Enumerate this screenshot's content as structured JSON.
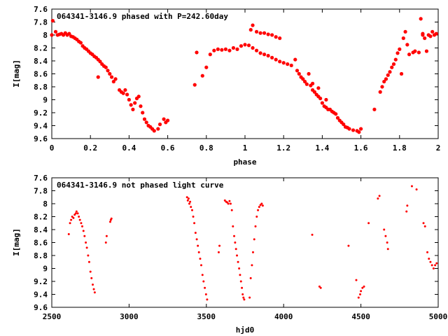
{
  "chart_data": [
    {
      "type": "scatter",
      "title": "064341-3146.9 phased with P=242.60day",
      "xlabel": "phase",
      "ylabel": "I[mag]",
      "xlim": [
        0,
        2
      ],
      "ylim": [
        7.6,
        9.6
      ],
      "y_inverted": true,
      "x_ticks": [
        "0",
        "0.2",
        "0.4",
        "0.6",
        "0.8",
        "1",
        "1.2",
        "1.4",
        "1.6",
        "1.8",
        "2"
      ],
      "y_ticks": [
        "7.6",
        "7.8",
        "8",
        "8.2",
        "8.4",
        "8.6",
        "8.8",
        "9",
        "9.2",
        "9.4",
        "9.6"
      ],
      "marker": "cross",
      "color": "#ff0000",
      "grid": false,
      "points": [
        [
          0.0,
          8.0
        ],
        [
          0.005,
          7.78
        ],
        [
          0.02,
          7.95
        ],
        [
          0.03,
          8.0
        ],
        [
          0.04,
          7.99
        ],
        [
          0.05,
          7.98
        ],
        [
          0.06,
          8.0
        ],
        [
          0.07,
          7.97
        ],
        [
          0.08,
          8.0
        ],
        [
          0.09,
          7.98
        ],
        [
          0.1,
          8.02
        ],
        [
          0.11,
          8.03
        ],
        [
          0.12,
          8.05
        ],
        [
          0.13,
          8.07
        ],
        [
          0.14,
          8.1
        ],
        [
          0.15,
          8.12
        ],
        [
          0.16,
          8.17
        ],
        [
          0.17,
          8.2
        ],
        [
          0.18,
          8.22
        ],
        [
          0.19,
          8.25
        ],
        [
          0.2,
          8.28
        ],
        [
          0.21,
          8.3
        ],
        [
          0.22,
          8.33
        ],
        [
          0.23,
          8.35
        ],
        [
          0.24,
          8.38
        ],
        [
          0.25,
          8.41
        ],
        [
          0.26,
          8.45
        ],
        [
          0.27,
          8.48
        ],
        [
          0.28,
          8.5
        ],
        [
          0.29,
          8.55
        ],
        [
          0.3,
          8.6
        ],
        [
          0.31,
          8.65
        ],
        [
          0.32,
          8.72
        ],
        [
          0.33,
          8.68
        ],
        [
          0.24,
          8.65
        ],
        [
          0.35,
          8.85
        ],
        [
          0.36,
          8.88
        ],
        [
          0.37,
          8.9
        ],
        [
          0.38,
          8.85
        ],
        [
          0.39,
          8.92
        ],
        [
          0.4,
          9.0
        ],
        [
          0.41,
          9.08
        ],
        [
          0.42,
          9.15
        ],
        [
          0.43,
          9.05
        ],
        [
          0.44,
          8.98
        ],
        [
          0.45,
          8.95
        ],
        [
          0.46,
          9.1
        ],
        [
          0.47,
          9.2
        ],
        [
          0.48,
          9.3
        ],
        [
          0.49,
          9.35
        ],
        [
          0.5,
          9.4
        ],
        [
          0.51,
          9.42
        ],
        [
          0.52,
          9.45
        ],
        [
          0.53,
          9.48
        ],
        [
          0.55,
          9.45
        ],
        [
          0.56,
          9.38
        ],
        [
          0.58,
          9.3
        ],
        [
          0.59,
          9.35
        ],
        [
          0.6,
          9.32
        ],
        [
          0.74,
          8.77
        ],
        [
          0.75,
          8.27
        ],
        [
          0.78,
          8.63
        ],
        [
          0.8,
          8.5
        ],
        [
          0.82,
          8.3
        ],
        [
          0.84,
          8.24
        ],
        [
          0.86,
          8.22
        ],
        [
          0.88,
          8.23
        ],
        [
          0.9,
          8.22
        ],
        [
          0.92,
          8.24
        ],
        [
          0.94,
          8.2
        ],
        [
          0.96,
          8.22
        ],
        [
          0.98,
          8.17
        ],
        [
          1.0,
          8.15
        ],
        [
          1.02,
          8.16
        ],
        [
          1.04,
          8.2
        ],
        [
          1.06,
          8.24
        ],
        [
          1.08,
          8.28
        ],
        [
          1.1,
          8.3
        ],
        [
          1.12,
          8.32
        ],
        [
          1.14,
          8.35
        ],
        [
          1.16,
          8.38
        ],
        [
          1.18,
          8.41
        ],
        [
          1.2,
          8.43
        ],
        [
          1.22,
          8.45
        ],
        [
          1.24,
          8.47
        ],
        [
          1.03,
          7.92
        ],
        [
          1.04,
          7.85
        ],
        [
          1.06,
          7.95
        ],
        [
          1.08,
          7.97
        ],
        [
          1.1,
          7.97
        ],
        [
          1.12,
          7.99
        ],
        [
          1.14,
          8.0
        ],
        [
          1.16,
          8.03
        ],
        [
          1.18,
          8.05
        ],
        [
          1.26,
          8.38
        ],
        [
          1.27,
          8.55
        ],
        [
          1.28,
          8.6
        ],
        [
          1.29,
          8.65
        ],
        [
          1.3,
          8.68
        ],
        [
          1.31,
          8.72
        ],
        [
          1.32,
          8.76
        ],
        [
          1.33,
          8.6
        ],
        [
          1.34,
          8.78
        ],
        [
          1.35,
          8.85
        ],
        [
          1.36,
          8.88
        ],
        [
          1.37,
          8.92
        ],
        [
          1.38,
          8.95
        ],
        [
          1.39,
          8.98
        ],
        [
          1.4,
          9.05
        ],
        [
          1.41,
          9.1
        ],
        [
          1.42,
          9.12
        ],
        [
          1.43,
          9.15
        ],
        [
          1.44,
          9.15
        ],
        [
          1.45,
          9.18
        ],
        [
          1.46,
          9.2
        ],
        [
          1.47,
          9.22
        ],
        [
          1.48,
          9.28
        ],
        [
          1.49,
          9.32
        ],
        [
          1.5,
          9.35
        ],
        [
          1.51,
          9.38
        ],
        [
          1.52,
          9.42
        ],
        [
          1.53,
          9.43
        ],
        [
          1.54,
          9.45
        ],
        [
          1.56,
          9.47
        ],
        [
          1.58,
          9.48
        ],
        [
          1.59,
          9.5
        ],
        [
          1.6,
          9.45
        ],
        [
          1.35,
          8.75
        ],
        [
          1.38,
          8.82
        ],
        [
          1.42,
          9.0
        ],
        [
          1.67,
          9.15
        ],
        [
          1.7,
          8.88
        ],
        [
          1.71,
          8.8
        ],
        [
          1.72,
          8.72
        ],
        [
          1.73,
          8.68
        ],
        [
          1.74,
          8.62
        ],
        [
          1.75,
          8.57
        ],
        [
          1.76,
          8.5
        ],
        [
          1.77,
          8.45
        ],
        [
          1.78,
          8.38
        ],
        [
          1.79,
          8.28
        ],
        [
          1.8,
          8.22
        ],
        [
          1.82,
          8.05
        ],
        [
          1.83,
          7.95
        ],
        [
          1.84,
          8.15
        ],
        [
          1.85,
          8.3
        ],
        [
          1.87,
          8.27
        ],
        [
          1.88,
          8.25
        ],
        [
          1.9,
          8.27
        ],
        [
          1.91,
          7.75
        ],
        [
          1.92,
          8.0
        ],
        [
          1.93,
          8.05
        ],
        [
          1.94,
          8.25
        ],
        [
          1.95,
          8.0
        ],
        [
          1.96,
          8.02
        ],
        [
          1.97,
          7.95
        ],
        [
          1.98,
          8.0
        ],
        [
          1.99,
          7.98
        ],
        [
          1.81,
          8.6
        ],
        [
          1.92,
          7.98
        ]
      ]
    },
    {
      "type": "scatter",
      "title": "064341-3146.9 not phased light curve",
      "xlabel": "hjd0",
      "ylabel": "I[mag]",
      "xlim": [
        2500,
        5000
      ],
      "ylim": [
        7.6,
        9.6
      ],
      "y_inverted": true,
      "x_ticks": [
        "2500",
        "3000",
        "3500",
        "4000",
        "4500",
        "5000"
      ],
      "y_ticks": [
        "7.6",
        "7.8",
        "8",
        "8.2",
        "8.4",
        "8.6",
        "8.8",
        "9",
        "9.2",
        "9.4",
        "9.6"
      ],
      "marker": "dot",
      "color": "#ff0000",
      "grid": false,
      "points": [
        [
          2610,
          8.47
        ],
        [
          2618,
          8.3
        ],
        [
          2625,
          8.25
        ],
        [
          2632,
          8.2
        ],
        [
          2640,
          8.22
        ],
        [
          2648,
          8.17
        ],
        [
          2655,
          8.15
        ],
        [
          2660,
          8.12
        ],
        [
          2668,
          8.15
        ],
        [
          2675,
          8.2
        ],
        [
          2682,
          8.25
        ],
        [
          2690,
          8.3
        ],
        [
          2697,
          8.35
        ],
        [
          2705,
          8.42
        ],
        [
          2712,
          8.5
        ],
        [
          2720,
          8.6
        ],
        [
          2727,
          8.68
        ],
        [
          2735,
          8.8
        ],
        [
          2742,
          8.9
        ],
        [
          2750,
          9.05
        ],
        [
          2757,
          9.15
        ],
        [
          2765,
          9.25
        ],
        [
          2772,
          9.32
        ],
        [
          2778,
          9.37
        ],
        [
          2850,
          8.6
        ],
        [
          2855,
          8.5
        ],
        [
          2878,
          8.28
        ],
        [
          2882,
          8.25
        ],
        [
          2886,
          8.23
        ],
        [
          3375,
          7.9
        ],
        [
          3380,
          7.95
        ],
        [
          3385,
          7.92
        ],
        [
          3390,
          8.0
        ],
        [
          3395,
          7.97
        ],
        [
          3400,
          8.05
        ],
        [
          3408,
          8.1
        ],
        [
          3415,
          8.2
        ],
        [
          3422,
          8.3
        ],
        [
          3430,
          8.45
        ],
        [
          3438,
          8.55
        ],
        [
          3445,
          8.65
        ],
        [
          3452,
          8.75
        ],
        [
          3460,
          8.85
        ],
        [
          3467,
          8.95
        ],
        [
          3475,
          9.1
        ],
        [
          3482,
          9.2
        ],
        [
          3490,
          9.3
        ],
        [
          3498,
          9.4
        ],
        [
          3505,
          9.48
        ],
        [
          3580,
          8.75
        ],
        [
          3585,
          8.65
        ],
        [
          3620,
          7.95
        ],
        [
          3628,
          7.97
        ],
        [
          3635,
          7.98
        ],
        [
          3642,
          8.0
        ],
        [
          3650,
          7.96
        ],
        [
          3657,
          8.0
        ],
        [
          3665,
          8.1
        ],
        [
          3672,
          8.35
        ],
        [
          3680,
          8.5
        ],
        [
          3686,
          8.6
        ],
        [
          3692,
          8.7
        ],
        [
          3698,
          8.8
        ],
        [
          3705,
          8.9
        ],
        [
          3712,
          9.0
        ],
        [
          3718,
          9.1
        ],
        [
          3724,
          9.2
        ],
        [
          3730,
          9.3
        ],
        [
          3735,
          9.4
        ],
        [
          3740,
          9.45
        ],
        [
          3745,
          9.48
        ],
        [
          3780,
          9.45
        ],
        [
          3787,
          9.15
        ],
        [
          3795,
          8.95
        ],
        [
          3802,
          8.75
        ],
        [
          3810,
          8.55
        ],
        [
          3818,
          8.35
        ],
        [
          3826,
          8.2
        ],
        [
          3834,
          8.1
        ],
        [
          3842,
          8.05
        ],
        [
          3850,
          8.02
        ],
        [
          3858,
          8.0
        ],
        [
          3865,
          8.03
        ],
        [
          4185,
          8.48
        ],
        [
          4232,
          9.28
        ],
        [
          4240,
          9.3
        ],
        [
          4420,
          8.65
        ],
        [
          4470,
          9.18
        ],
        [
          4485,
          9.45
        ],
        [
          4495,
          9.4
        ],
        [
          4500,
          9.35
        ],
        [
          4510,
          9.3
        ],
        [
          4520,
          9.28
        ],
        [
          4550,
          8.3
        ],
        [
          4610,
          7.92
        ],
        [
          4620,
          7.88
        ],
        [
          4650,
          8.4
        ],
        [
          4660,
          8.5
        ],
        [
          4670,
          8.6
        ],
        [
          4675,
          8.7
        ],
        [
          4795,
          8.12
        ],
        [
          4800,
          8.03
        ],
        [
          4830,
          7.73
        ],
        [
          4860,
          7.78
        ],
        [
          4905,
          8.3
        ],
        [
          4915,
          8.35
        ],
        [
          4930,
          8.75
        ],
        [
          4940,
          8.85
        ],
        [
          4950,
          8.9
        ],
        [
          4960,
          8.95
        ],
        [
          4970,
          9.0
        ],
        [
          4980,
          8.95
        ],
        [
          4990,
          8.92
        ]
      ]
    }
  ]
}
